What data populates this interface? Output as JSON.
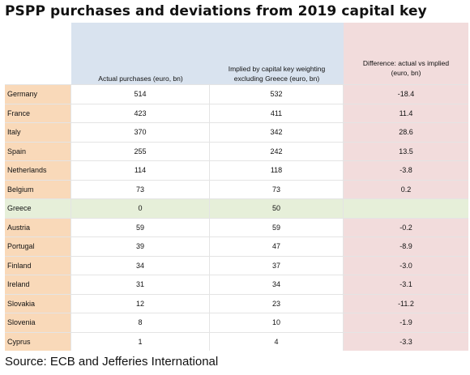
{
  "title": "PSPP purchases and deviations from 2019 capital key",
  "headers": {
    "country": "",
    "actual": "Actual purchases (euro, bn)",
    "implied_line1": "Implied by capital key weighting",
    "implied_line2": "excluding Greece (euro, bn)",
    "diff_line1": "Difference: actual vs implied",
    "diff_line2": "(euro, bn)"
  },
  "rows": [
    {
      "country": "Germany",
      "actual": "514",
      "implied": "532",
      "diff": "-18.4"
    },
    {
      "country": "France",
      "actual": "423",
      "implied": "411",
      "diff": "11.4"
    },
    {
      "country": "Italy",
      "actual": "370",
      "implied": "342",
      "diff": "28.6"
    },
    {
      "country": "Spain",
      "actual": "255",
      "implied": "242",
      "diff": "13.5"
    },
    {
      "country": "Netherlands",
      "actual": "114",
      "implied": "118",
      "diff": "-3.8"
    },
    {
      "country": "Belgium",
      "actual": "73",
      "implied": "73",
      "diff": "0.2"
    },
    {
      "country": "Greece",
      "actual": "0",
      "implied": "50",
      "diff": ""
    },
    {
      "country": "Austria",
      "actual": "59",
      "implied": "59",
      "diff": "-0.2"
    },
    {
      "country": "Portugal",
      "actual": "39",
      "implied": "47",
      "diff": "-8.9"
    },
    {
      "country": "Finland",
      "actual": "34",
      "implied": "37",
      "diff": "-3.0"
    },
    {
      "country": "Ireland",
      "actual": "31",
      "implied": "34",
      "diff": "-3.1"
    },
    {
      "country": "Slovakia",
      "actual": "12",
      "implied": "23",
      "diff": "-11.2"
    },
    {
      "country": "Slovenia",
      "actual": "8",
      "implied": "10",
      "diff": "-1.9"
    },
    {
      "country": "Cyprus",
      "actual": "1",
      "implied": "4",
      "diff": "-3.3"
    }
  ],
  "highlight_row": "Greece",
  "colors": {
    "country_col": "#f9d9b9",
    "header_blue": "#d9e3ef",
    "diff_col": "#f2dcdc",
    "highlight_row": "#e6efd9"
  },
  "source": "Source: ECB and Jefferies International"
}
